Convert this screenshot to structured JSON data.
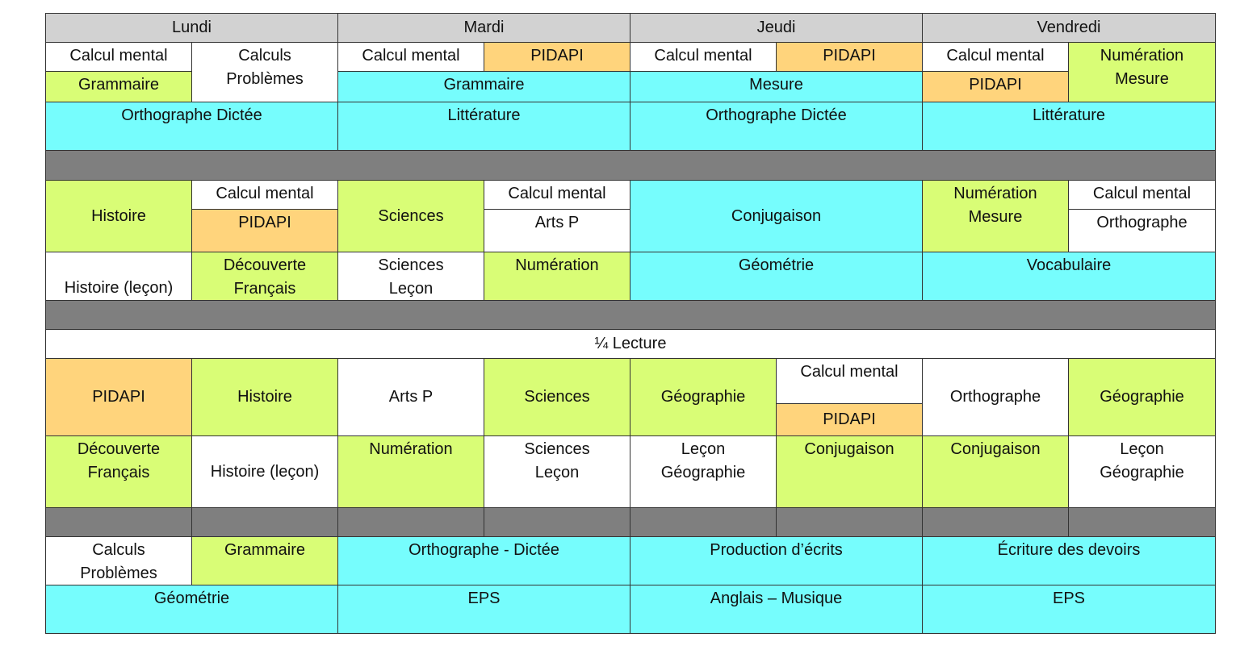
{
  "colors": {
    "white": "#ffffff",
    "green": "#d9fd76",
    "cyan": "#76fdfd",
    "orange": "#ffd47c",
    "header": "#d2d2d2",
    "break": "#7f7f7f"
  },
  "days": [
    "Lundi",
    "Mardi",
    "Jeudi",
    "Vendredi"
  ],
  "cells": [
    "Calcul mental",
    "Grammaire",
    "Calculs\nProblèmes",
    "Calcul mental",
    "PIDAPI",
    "Grammaire",
    "Calcul mental",
    "PIDAPI",
    "Mesure",
    "Calcul mental",
    "PIDAPI",
    "Numération\nMesure",
    "Orthographe Dictée",
    "Littérature",
    "Orthographe Dictée",
    "Littérature",
    "Histoire",
    "Calcul mental",
    "PIDAPI",
    "Sciences",
    "Calcul mental",
    "Arts P",
    "Conjugaison",
    "Numération\nMesure",
    "Calcul mental",
    "Orthographe",
    "Histoire (leçon)",
    "Découverte\nFrançais",
    "Sciences\nLeçon",
    "Numération",
    "Géométrie",
    "Vocabulaire",
    "¼ Lecture",
    "PIDAPI",
    "Histoire",
    "Arts P",
    "Sciences",
    "Géographie",
    "Calcul mental",
    "PIDAPI",
    "Orthographe",
    "Géographie",
    "Découverte\nFrançais",
    "Histoire (leçon)",
    "Numération",
    "Sciences\nLeçon",
    "Leçon\nGéographie",
    "Conjugaison",
    "Conjugaison",
    "Leçon\nGéographie",
    "Calculs\nProblèmes",
    "Grammaire",
    "Orthographe - Dictée",
    "Production d’écrits",
    "Écriture des devoirs",
    "Géométrie",
    "EPS",
    "Anglais – Musique",
    "EPS"
  ]
}
